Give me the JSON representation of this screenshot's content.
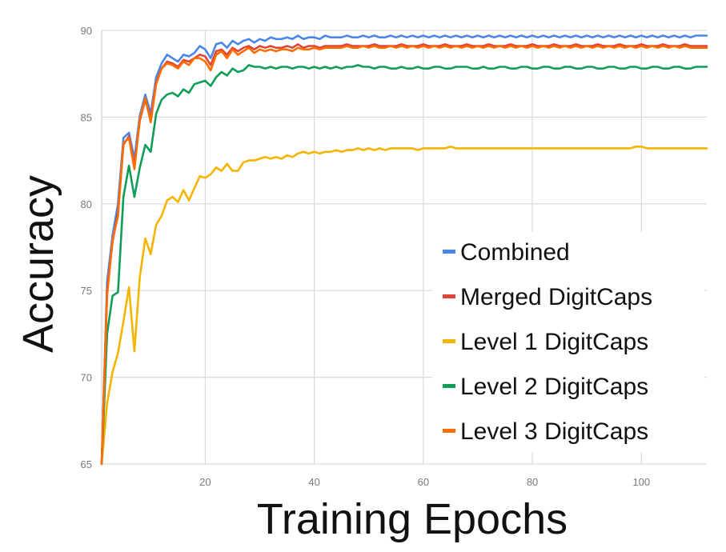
{
  "chart_data": {
    "type": "line",
    "title": "",
    "xlabel": "Training Epochs",
    "ylabel": "Accuracy",
    "xlim": [
      1,
      112
    ],
    "ylim": [
      65,
      90
    ],
    "grid": true,
    "legend_position": "bottom-right",
    "x_ticks": [
      20,
      40,
      60,
      80,
      100
    ],
    "y_ticks": [
      65,
      70,
      75,
      80,
      85,
      90
    ],
    "x": [
      1,
      2,
      3,
      4,
      5,
      6,
      7,
      8,
      9,
      10,
      11,
      12,
      13,
      14,
      15,
      16,
      17,
      18,
      19,
      20,
      21,
      22,
      23,
      24,
      25,
      26,
      27,
      28,
      29,
      30,
      31,
      32,
      33,
      34,
      35,
      36,
      37,
      38,
      39,
      40,
      41,
      42,
      43,
      44,
      45,
      46,
      47,
      48,
      49,
      50,
      51,
      52,
      53,
      54,
      55,
      56,
      57,
      58,
      59,
      60,
      61,
      62,
      63,
      64,
      65,
      66,
      67,
      68,
      69,
      70,
      71,
      72,
      73,
      74,
      75,
      76,
      77,
      78,
      79,
      80,
      81,
      82,
      83,
      84,
      85,
      86,
      87,
      88,
      89,
      90,
      91,
      92,
      93,
      94,
      95,
      96,
      97,
      98,
      99,
      100,
      101,
      102,
      103,
      104,
      105,
      106,
      107,
      108,
      109,
      110,
      111,
      112
    ],
    "series": [
      {
        "name": "Combined",
        "color": "#4a86e8",
        "values": [
          65.0,
          75.5,
          78.2,
          80.0,
          83.8,
          84.1,
          82.6,
          85.1,
          86.3,
          85.2,
          87.3,
          88.1,
          88.6,
          88.4,
          88.2,
          88.6,
          88.5,
          88.7,
          89.1,
          88.9,
          88.4,
          89.2,
          89.3,
          89.0,
          89.4,
          89.2,
          89.4,
          89.5,
          89.3,
          89.5,
          89.4,
          89.6,
          89.5,
          89.5,
          89.6,
          89.5,
          89.7,
          89.5,
          89.6,
          89.6,
          89.5,
          89.7,
          89.6,
          89.6,
          89.6,
          89.7,
          89.6,
          89.6,
          89.7,
          89.6,
          89.7,
          89.6,
          89.6,
          89.7,
          89.6,
          89.7,
          89.6,
          89.7,
          89.6,
          89.7,
          89.6,
          89.7,
          89.6,
          89.7,
          89.6,
          89.7,
          89.6,
          89.7,
          89.6,
          89.7,
          89.6,
          89.7,
          89.6,
          89.7,
          89.6,
          89.7,
          89.6,
          89.7,
          89.6,
          89.7,
          89.6,
          89.7,
          89.6,
          89.7,
          89.6,
          89.7,
          89.6,
          89.7,
          89.6,
          89.7,
          89.6,
          89.7,
          89.6,
          89.7,
          89.6,
          89.7,
          89.6,
          89.7,
          89.6,
          89.7,
          89.6,
          89.7,
          89.6,
          89.7,
          89.6,
          89.7,
          89.6,
          89.7,
          89.6,
          89.7,
          89.7,
          89.7
        ]
      },
      {
        "name": "Merged DigitCaps",
        "color": "#e0453a",
        "values": [
          65.0,
          75.0,
          77.8,
          79.5,
          83.4,
          83.9,
          82.2,
          84.8,
          86.0,
          84.9,
          87.0,
          87.8,
          88.2,
          88.1,
          87.9,
          88.3,
          88.2,
          88.4,
          88.6,
          88.5,
          88.0,
          88.8,
          88.9,
          88.6,
          89.0,
          88.8,
          89.0,
          89.1,
          88.9,
          89.1,
          89.0,
          89.1,
          89.0,
          89.0,
          89.1,
          89.0,
          89.2,
          89.0,
          89.1,
          89.1,
          89.0,
          89.1,
          89.1,
          89.1,
          89.1,
          89.2,
          89.1,
          89.1,
          89.1,
          89.1,
          89.2,
          89.1,
          89.1,
          89.1,
          89.1,
          89.2,
          89.1,
          89.1,
          89.1,
          89.2,
          89.1,
          89.1,
          89.1,
          89.2,
          89.1,
          89.1,
          89.1,
          89.2,
          89.1,
          89.1,
          89.1,
          89.2,
          89.1,
          89.1,
          89.1,
          89.2,
          89.1,
          89.1,
          89.1,
          89.2,
          89.1,
          89.1,
          89.1,
          89.2,
          89.1,
          89.1,
          89.1,
          89.2,
          89.1,
          89.1,
          89.1,
          89.2,
          89.1,
          89.1,
          89.1,
          89.2,
          89.1,
          89.1,
          89.1,
          89.2,
          89.1,
          89.1,
          89.1,
          89.2,
          89.1,
          89.1,
          89.1,
          89.2,
          89.1,
          89.1,
          89.1,
          89.1
        ]
      },
      {
        "name": "Level 1 DigitCaps",
        "color": "#f4b400",
        "values": [
          65.0,
          68.5,
          70.3,
          71.4,
          73.2,
          75.2,
          71.5,
          75.8,
          78.0,
          77.1,
          78.8,
          79.3,
          80.2,
          80.4,
          80.1,
          80.8,
          80.2,
          80.9,
          81.6,
          81.5,
          81.7,
          82.1,
          81.9,
          82.3,
          81.9,
          81.9,
          82.4,
          82.5,
          82.5,
          82.6,
          82.7,
          82.6,
          82.7,
          82.6,
          82.8,
          82.7,
          82.9,
          83.0,
          82.9,
          83.0,
          82.9,
          83.0,
          83.0,
          83.1,
          83.0,
          83.1,
          83.1,
          83.2,
          83.1,
          83.2,
          83.1,
          83.2,
          83.1,
          83.2,
          83.2,
          83.2,
          83.2,
          83.2,
          83.1,
          83.2,
          83.2,
          83.2,
          83.2,
          83.2,
          83.3,
          83.2,
          83.2,
          83.2,
          83.2,
          83.2,
          83.2,
          83.2,
          83.2,
          83.2,
          83.2,
          83.2,
          83.2,
          83.2,
          83.2,
          83.2,
          83.2,
          83.2,
          83.2,
          83.2,
          83.2,
          83.2,
          83.2,
          83.2,
          83.2,
          83.2,
          83.2,
          83.2,
          83.2,
          83.2,
          83.2,
          83.2,
          83.2,
          83.2,
          83.3,
          83.3,
          83.2,
          83.2,
          83.2,
          83.2,
          83.2,
          83.2,
          83.2,
          83.2,
          83.2,
          83.2,
          83.2,
          83.2
        ]
      },
      {
        "name": "Level 2 DigitCaps",
        "color": "#0f9d58",
        "values": [
          65.0,
          72.5,
          74.7,
          74.9,
          80.4,
          82.2,
          80.4,
          82.1,
          83.4,
          83.0,
          85.2,
          86.0,
          86.3,
          86.4,
          86.2,
          86.6,
          86.4,
          86.9,
          87.0,
          87.1,
          86.8,
          87.3,
          87.6,
          87.4,
          87.8,
          87.6,
          87.7,
          88.0,
          87.9,
          87.9,
          87.8,
          87.9,
          87.8,
          87.9,
          87.9,
          87.8,
          87.9,
          87.9,
          87.8,
          87.9,
          87.8,
          87.9,
          87.8,
          87.9,
          87.8,
          87.9,
          87.9,
          88.0,
          87.9,
          87.9,
          87.8,
          87.9,
          87.9,
          87.8,
          87.8,
          87.9,
          87.8,
          87.8,
          87.9,
          87.8,
          87.8,
          87.9,
          87.9,
          87.8,
          87.8,
          87.9,
          87.9,
          87.9,
          87.8,
          87.8,
          87.9,
          87.8,
          87.8,
          87.9,
          87.9,
          87.8,
          87.8,
          87.9,
          87.9,
          87.8,
          87.8,
          87.9,
          87.9,
          87.8,
          87.8,
          87.9,
          87.9,
          87.8,
          87.8,
          87.9,
          87.9,
          87.8,
          87.8,
          87.9,
          87.9,
          87.8,
          87.8,
          87.9,
          87.9,
          87.8,
          87.8,
          87.9,
          87.9,
          87.8,
          87.8,
          87.9,
          87.9,
          87.8,
          87.8,
          87.9,
          87.9,
          87.9
        ]
      },
      {
        "name": "Level 3 DigitCaps",
        "color": "#ff6d00",
        "values": [
          65.0,
          74.7,
          77.9,
          79.3,
          83.5,
          83.8,
          82.0,
          84.9,
          86.1,
          84.7,
          86.9,
          87.8,
          88.1,
          88.0,
          87.8,
          88.2,
          88.0,
          88.4,
          88.4,
          88.2,
          87.7,
          88.6,
          88.8,
          88.4,
          88.9,
          88.6,
          88.8,
          89.0,
          88.7,
          88.9,
          88.8,
          88.9,
          88.8,
          88.9,
          88.9,
          88.8,
          89.0,
          88.9,
          88.9,
          89.0,
          88.9,
          89.0,
          89.0,
          89.0,
          89.0,
          89.1,
          89.0,
          89.0,
          89.1,
          89.0,
          89.1,
          89.0,
          89.0,
          89.1,
          89.0,
          89.1,
          89.0,
          89.1,
          89.0,
          89.1,
          89.0,
          89.1,
          89.0,
          89.1,
          89.0,
          89.1,
          89.0,
          89.1,
          89.0,
          89.1,
          89.0,
          89.1,
          89.0,
          89.1,
          89.0,
          89.1,
          89.0,
          89.1,
          89.0,
          89.1,
          89.0,
          89.1,
          89.0,
          89.1,
          89.0,
          89.1,
          89.0,
          89.1,
          89.0,
          89.1,
          89.0,
          89.1,
          89.0,
          89.1,
          89.0,
          89.1,
          89.0,
          89.1,
          89.0,
          89.1,
          89.0,
          89.1,
          89.0,
          89.1,
          89.0,
          89.1,
          89.0,
          89.1,
          89.0,
          89.0,
          89.0,
          89.0
        ]
      }
    ]
  }
}
